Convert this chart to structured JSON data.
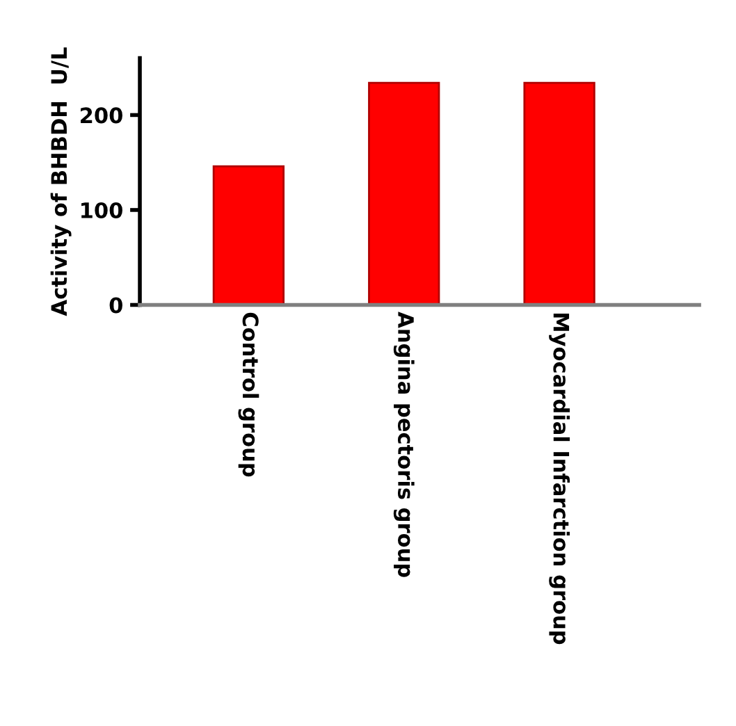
{
  "chart_data": {
    "type": "bar",
    "ylabel": "Activity of BHBDH  U/L",
    "categories": [
      "Control group",
      "Angina pectoris group",
      "Myocardial Infarction group"
    ],
    "values": [
      146,
      234,
      234
    ],
    "color": "#ff0000",
    "ylim": [
      0,
      260
    ],
    "yticks": [
      0,
      100,
      200
    ],
    "grid": false
  }
}
